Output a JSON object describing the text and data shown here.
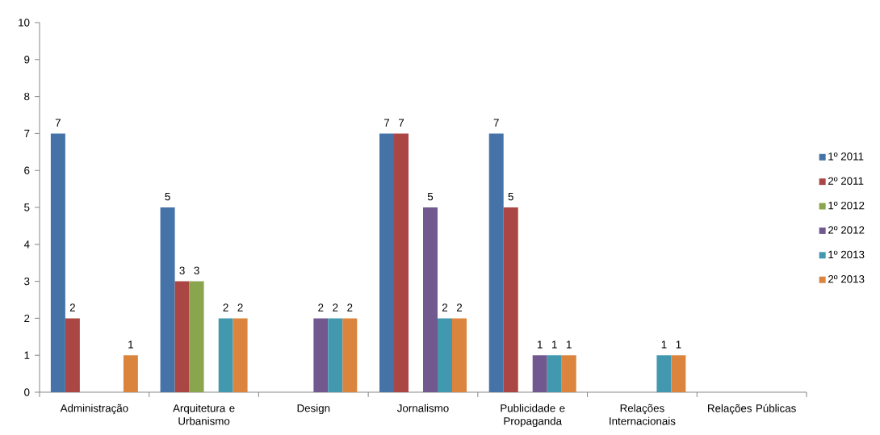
{
  "chart_data": {
    "type": "bar",
    "categories": [
      "Administração",
      "Arquitetura e Urbanismo",
      "Design",
      "Jornalismo",
      "Publicidade e Propaganda",
      "Relações Internacionais",
      "Relações Públicas"
    ],
    "series": [
      {
        "name": "1º 2011",
        "color": "#4572a7",
        "values": [
          7,
          5,
          null,
          7,
          7,
          null,
          null
        ]
      },
      {
        "name": "2º 2011",
        "color": "#aa4643",
        "values": [
          2,
          3,
          null,
          7,
          5,
          null,
          null
        ]
      },
      {
        "name": "1º 2012",
        "color": "#89a54e",
        "values": [
          null,
          3,
          null,
          null,
          null,
          null,
          null
        ]
      },
      {
        "name": "2º 2012",
        "color": "#71588f",
        "values": [
          null,
          null,
          2,
          5,
          1,
          null,
          null
        ]
      },
      {
        "name": "1º 2013",
        "color": "#4198af",
        "values": [
          null,
          2,
          2,
          2,
          1,
          1,
          null
        ]
      },
      {
        "name": "2º 2013",
        "color": "#db843d",
        "values": [
          1,
          2,
          2,
          2,
          1,
          1,
          null
        ]
      }
    ],
    "ylim": [
      0,
      10
    ],
    "yticks": [
      0,
      1,
      2,
      3,
      4,
      5,
      6,
      7,
      8,
      9,
      10
    ],
    "data_labels": true,
    "legend": "right"
  }
}
